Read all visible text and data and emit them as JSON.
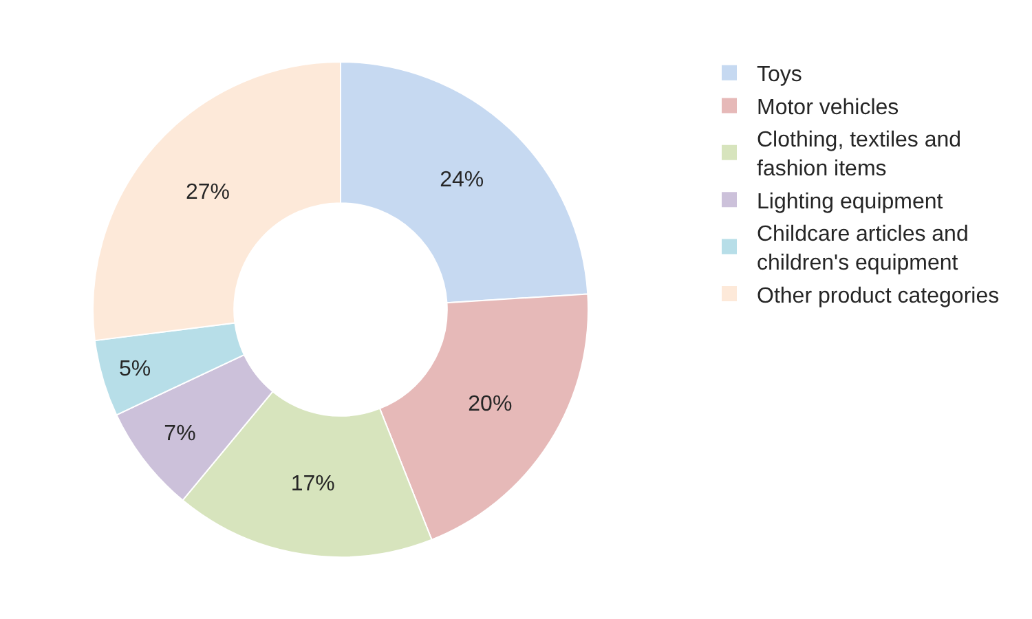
{
  "chart_data": {
    "type": "donut",
    "categories": [
      "Toys",
      "Motor vehicles",
      "Clothing, textiles and fashion items",
      "Lighting equipment",
      "Childcare articles and children's equipment",
      "Other product categories"
    ],
    "values": [
      24,
      20,
      17,
      7,
      5,
      27
    ],
    "colors": [
      "#c6d9f1",
      "#e6b9b8",
      "#d7e4bd",
      "#ccc1da",
      "#b7dee8",
      "#fde9d9"
    ],
    "value_labels": [
      "24%",
      "20%",
      "17%",
      "7%",
      "5%",
      "27%"
    ],
    "legend": "right"
  }
}
